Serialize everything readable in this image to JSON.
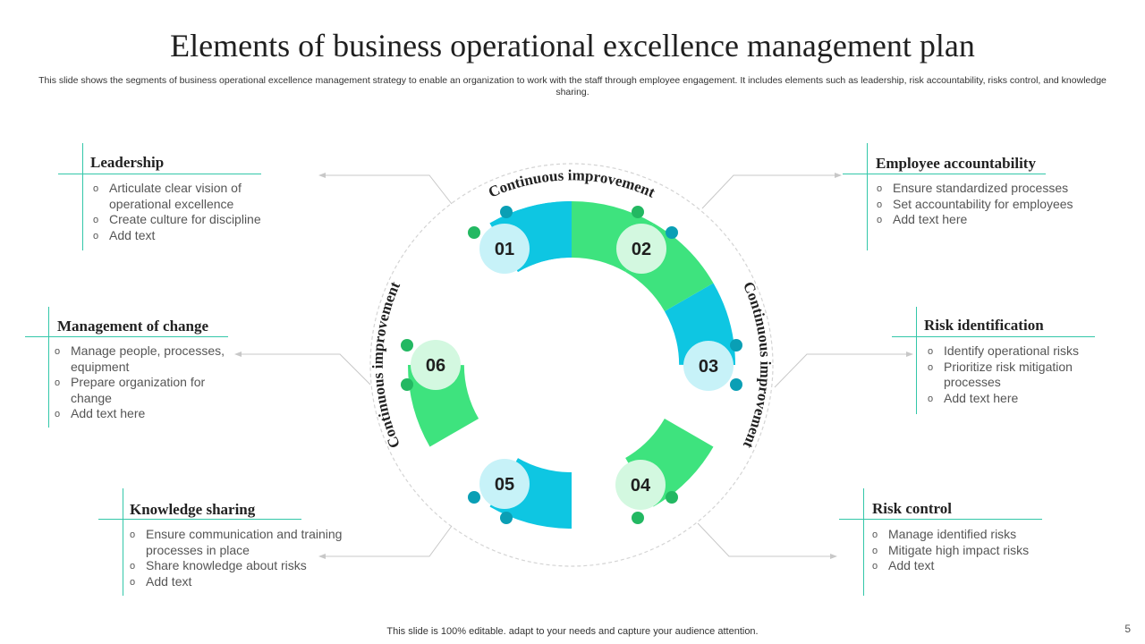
{
  "title": "Elements of business operational excellence management plan",
  "subtitle": "This slide shows the segments of business operational excellence management strategy to enable an organization to work with the staff through employee engagement. It includes elements such as leadership, risk accountability, risks control, and knowledge sharing.",
  "footer": "This slide is 100% editable. adapt to your needs and capture your audience attention.",
  "page_number": "5",
  "colors": {
    "accent_teal": "#33c7a9",
    "segment_blue": "#0ec6e2",
    "segment_green": "#3ee37e"
  },
  "cycle": {
    "label_top": "Continuous improvement",
    "label_right": "Continuous improvement",
    "label_left": "Continuous improvement",
    "segments": [
      "01",
      "02",
      "03",
      "04",
      "05",
      "06"
    ]
  },
  "elements": [
    {
      "heading": "Leadership",
      "items": [
        "Articulate clear vision of operational excellence",
        "Create culture for discipline",
        "Add text"
      ]
    },
    {
      "heading": "Employee accountability",
      "items": [
        "Ensure standardized processes",
        "Set accountability for employees",
        "Add text here"
      ]
    },
    {
      "heading": "Management of change",
      "items": [
        "Manage people, processes, equipment",
        "Prepare organization for change",
        "Add text here"
      ]
    },
    {
      "heading": "Risk identification",
      "items": [
        "Identify operational risks",
        "Prioritize risk mitigation processes",
        "Add text here"
      ]
    },
    {
      "heading": "Knowledge sharing",
      "items": [
        "Ensure communication and training processes in place",
        "Share knowledge about risks",
        "Add text"
      ]
    },
    {
      "heading": "Risk control",
      "items": [
        "Manage identified risks",
        "Mitigate high impact risks",
        "Add text"
      ]
    }
  ]
}
